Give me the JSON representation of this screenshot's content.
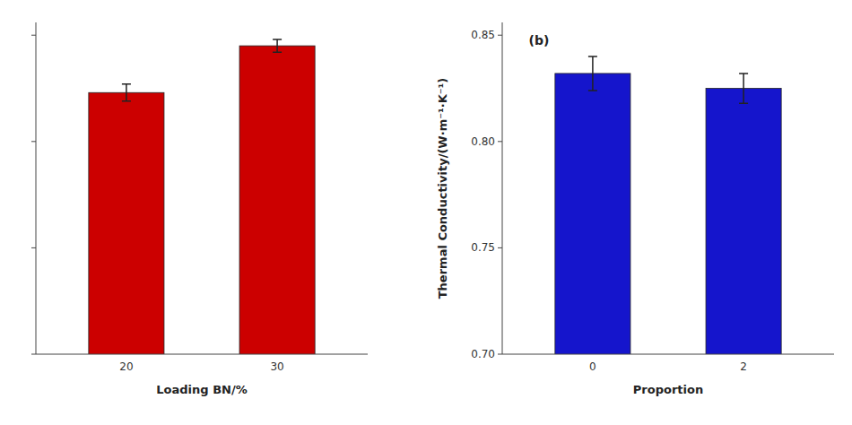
{
  "chart_data": [
    {
      "type": "bar",
      "categories": [
        "20",
        "30"
      ],
      "values": [
        0.823,
        0.845
      ],
      "errors": [
        0.004,
        0.003
      ],
      "color": "#CC0000",
      "xlabel": "Loading BN/%",
      "ylim": [
        0.7,
        0.856
      ],
      "yticks": [
        0.7,
        0.75,
        0.8,
        0.85
      ],
      "tick_labels": "x",
      "grid": false
    },
    {
      "type": "bar",
      "categories": [
        "0",
        "2"
      ],
      "values": [
        0.832,
        0.825
      ],
      "errors": [
        0.008,
        0.007
      ],
      "color": "#1515CC",
      "xlabel": "Proportion",
      "ylabel": "Thermal Conductivity/(W·m⁻¹·K⁻¹)",
      "annotation": "(b)",
      "ylim": [
        0.7,
        0.856
      ],
      "yticks": [
        {
          "value": 0.7,
          "label": "0.70"
        },
        0.75,
        {
          "value": 0.8,
          "label": "0.80"
        },
        0.85
      ],
      "grid": false
    }
  ]
}
